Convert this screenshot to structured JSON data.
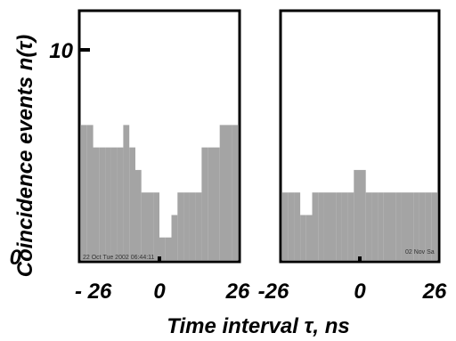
{
  "chart_data": [
    {
      "type": "bar",
      "panel": "left",
      "xlim": [
        -26,
        26
      ],
      "ylim": [
        0,
        11
      ],
      "stamp": "22 Oct Tue 2002 06:44:11",
      "x_tick_labels": [
        "- 26",
        "0",
        "26"
      ],
      "y_tick_labels": [
        "0",
        "10"
      ],
      "x": [
        -25,
        -23,
        -21,
        -19,
        -17,
        -15,
        -13,
        -11,
        -9,
        -7,
        -5,
        -3,
        -1,
        1,
        3,
        5,
        7,
        9,
        11,
        13,
        15,
        17,
        19,
        21,
        23,
        25
      ],
      "values": [
        6,
        6,
        5,
        5,
        5,
        5,
        5,
        6,
        5,
        4,
        3,
        3,
        3,
        1,
        1,
        2,
        3,
        3,
        3,
        3,
        5,
        5,
        5,
        6,
        6,
        6
      ]
    },
    {
      "type": "bar",
      "panel": "right",
      "xlim": [
        -26,
        26
      ],
      "ylim": [
        0,
        11
      ],
      "stamp": "02 Nov Sa",
      "x_tick_labels": [
        "-26",
        "0",
        "26"
      ],
      "x": [
        -25,
        -23,
        -21,
        -19,
        -17,
        -15,
        -13,
        -11,
        -9,
        -7,
        -5,
        -3,
        -1,
        1,
        3,
        5,
        7,
        9,
        11,
        13,
        15,
        17,
        19,
        21,
        23,
        25
      ],
      "values": [
        3,
        3,
        3,
        2,
        2,
        3,
        3,
        3,
        3,
        3,
        3,
        3,
        4,
        4,
        3,
        3,
        3,
        3,
        3,
        3,
        3,
        3,
        3,
        3,
        3,
        3
      ]
    }
  ],
  "axes": {
    "ylabel": "Coincidence events n(τ)",
    "xlabel": "Time interval τ, ns"
  }
}
